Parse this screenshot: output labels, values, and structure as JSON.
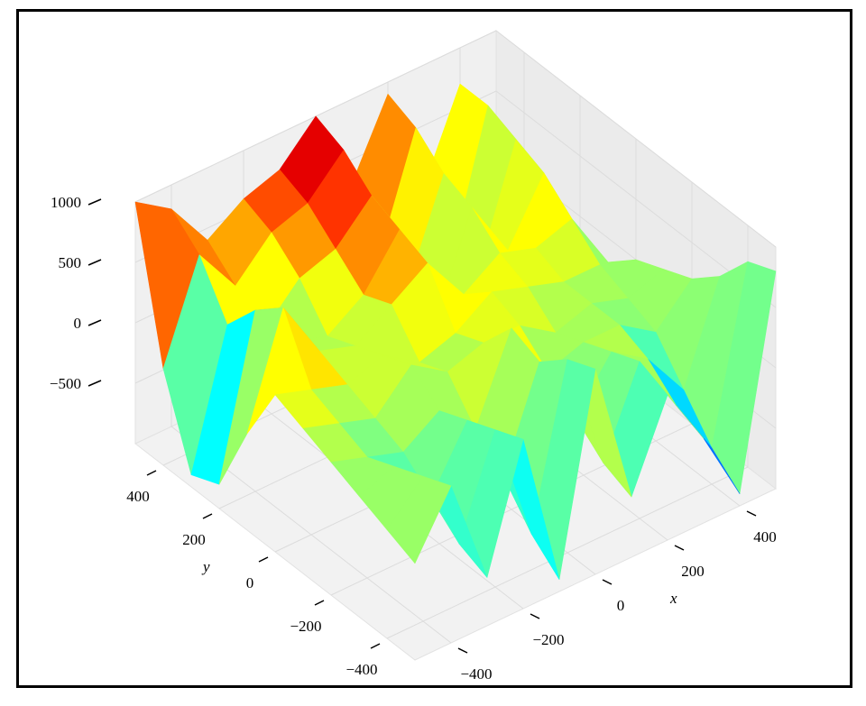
{
  "chart_data": {
    "type": "surface3d",
    "x_label": "x",
    "y_label": "y",
    "x": [
      -500,
      -400,
      -300,
      -200,
      -100,
      0,
      100,
      200,
      300,
      400,
      500
    ],
    "y": [
      -500,
      -400,
      -300,
      -200,
      -100,
      0,
      100,
      200,
      300,
      400,
      500
    ],
    "z": [
      [
        -200,
        300,
        -600,
        400,
        -900,
        700,
        -500,
        200,
        -300,
        -900,
        800
      ],
      [
        -100,
        200,
        -500,
        300,
        -700,
        600,
        -400,
        300,
        -200,
        -700,
        700
      ],
      [
        0,
        100,
        -300,
        200,
        -400,
        400,
        -200,
        200,
        0,
        -400,
        400
      ],
      [
        100,
        0,
        -100,
        100,
        -200,
        500,
        0,
        100,
        100,
        -100,
        200
      ],
      [
        200,
        100,
        0,
        300,
        100,
        200,
        200,
        0,
        100,
        0,
        100
      ],
      [
        300,
        200,
        100,
        200,
        0,
        100,
        300,
        200,
        100,
        100,
        0
      ],
      [
        -200,
        700,
        200,
        100,
        300,
        500,
        100,
        300,
        200,
        300,
        -200
      ],
      [
        -800,
        500,
        100,
        0,
        200,
        600,
        -300,
        500,
        0,
        500,
        -400
      ],
      [
        -900,
        200,
        0,
        300,
        400,
        700,
        -200,
        600,
        -300,
        600,
        -600
      ],
      [
        -200,
        600,
        200,
        500,
        600,
        900,
        -100,
        800,
        -400,
        700,
        -300
      ],
      [
        1000,
        800,
        400,
        600,
        700,
        1000,
        300,
        900,
        0,
        700,
        0
      ]
    ],
    "colormap": "jet",
    "xlim": [
      -500,
      500
    ],
    "ylim": [
      -500,
      500
    ],
    "zlim": [
      -1000,
      1000
    ],
    "xticks": [
      {
        "value": -400,
        "label": "−400"
      },
      {
        "value": -200,
        "label": "−200"
      },
      0,
      200,
      400
    ],
    "yticks": [
      {
        "value": -400,
        "label": "−400"
      },
      {
        "value": -200,
        "label": "−200"
      },
      0,
      200,
      400
    ],
    "zticks": [
      {
        "value": -500,
        "label": "−500"
      },
      0,
      500,
      1000
    ],
    "grid": true
  }
}
